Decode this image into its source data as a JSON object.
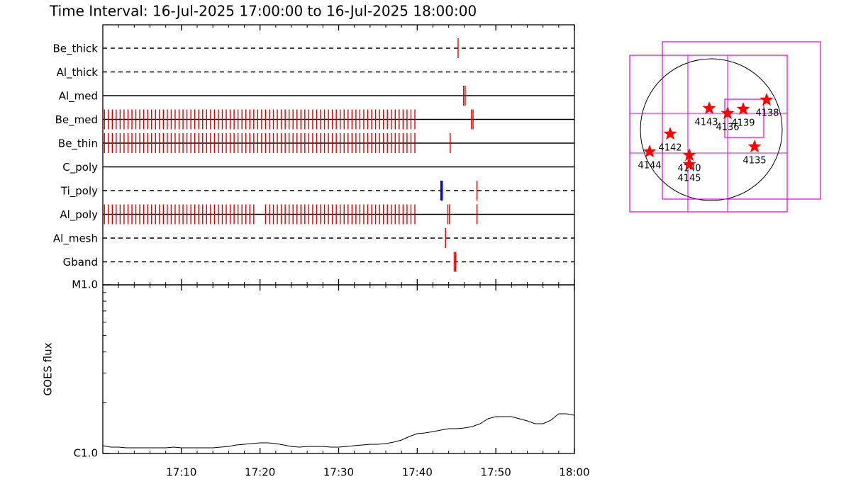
{
  "chart_data": [
    {
      "type": "timeline",
      "title": "Time Interval: 16-Jul-2025 17:00:00 to 16-Jul-2025 18:00:00",
      "xlim": [
        1020,
        1080
      ],
      "xticks": [
        {
          "value": 1030,
          "label": "17:10"
        },
        {
          "value": 1040,
          "label": "17:20"
        },
        {
          "value": 1050,
          "label": "17:30"
        },
        {
          "value": 1060,
          "label": "17:40"
        },
        {
          "value": 1070,
          "label": "17:50"
        },
        {
          "value": 1080,
          "label": "18:00"
        }
      ],
      "xminor": [
        1020,
        1022,
        1024,
        1026,
        1028,
        1032,
        1034,
        1036,
        1038,
        1042,
        1044,
        1046,
        1048,
        1052,
        1054,
        1056,
        1058,
        1062,
        1064,
        1066,
        1068,
        1072,
        1074,
        1076,
        1078
      ],
      "color": "#dd0000",
      "alt_color": "#0000ee",
      "rows": [
        {
          "name": "Be_thick",
          "dashed": true,
          "times": [
            1065.2
          ]
        },
        {
          "name": "Al_thick",
          "dashed": true,
          "times": []
        },
        {
          "name": "Al_med",
          "dashed": false,
          "times": [
            1065.9,
            1066.1
          ]
        },
        {
          "name": "Be_med",
          "dashed": false,
          "times": [
            1020.2,
            1020.7,
            1021.2,
            1021.7,
            1022.2,
            1022.7,
            1023.2,
            1023.7,
            1024.2,
            1024.7,
            1025.2,
            1025.7,
            1026.2,
            1026.7,
            1027.2,
            1027.7,
            1028.2,
            1028.7,
            1029.2,
            1029.7,
            1030.2,
            1030.7,
            1031.2,
            1031.7,
            1032.2,
            1032.7,
            1033.2,
            1033.7,
            1034.2,
            1034.7,
            1035.2,
            1035.7,
            1036.2,
            1036.7,
            1037.2,
            1037.7,
            1038.2,
            1038.7,
            1039.2,
            1039.7,
            1040.2,
            1040.7,
            1041.2,
            1041.7,
            1042.2,
            1042.7,
            1043.2,
            1043.7,
            1044.2,
            1044.7,
            1045.2,
            1045.7,
            1046.2,
            1046.7,
            1047.2,
            1047.7,
            1048.2,
            1048.7,
            1049.2,
            1049.7,
            1050.2,
            1050.7,
            1051.2,
            1051.7,
            1052.2,
            1052.7,
            1053.2,
            1053.7,
            1054.2,
            1054.7,
            1055.2,
            1055.7,
            1056.2,
            1056.7,
            1057.2,
            1057.7,
            1058.2,
            1058.7,
            1059.2,
            1059.7,
            1066.9,
            1067.1
          ]
        },
        {
          "name": "Be_thin",
          "dashed": false,
          "times": [
            1020.2,
            1020.7,
            1021.2,
            1021.7,
            1022.2,
            1022.7,
            1023.2,
            1023.7,
            1024.2,
            1024.7,
            1025.2,
            1025.7,
            1026.2,
            1026.7,
            1027.2,
            1027.7,
            1028.2,
            1028.7,
            1029.2,
            1029.7,
            1030.2,
            1030.7,
            1031.2,
            1031.7,
            1032.2,
            1032.7,
            1033.2,
            1033.7,
            1034.2,
            1034.7,
            1035.2,
            1035.7,
            1036.2,
            1036.7,
            1037.2,
            1037.7,
            1038.2,
            1038.7,
            1039.2,
            1039.7,
            1040.2,
            1040.7,
            1041.2,
            1041.7,
            1042.2,
            1042.7,
            1043.2,
            1043.7,
            1044.2,
            1044.7,
            1045.2,
            1045.7,
            1046.2,
            1046.7,
            1047.2,
            1047.7,
            1048.2,
            1048.7,
            1049.2,
            1049.7,
            1050.2,
            1050.7,
            1051.2,
            1051.7,
            1052.2,
            1052.7,
            1053.2,
            1053.7,
            1054.2,
            1054.7,
            1055.2,
            1055.7,
            1056.2,
            1056.7,
            1057.2,
            1057.7,
            1058.2,
            1058.7,
            1059.2,
            1059.7,
            1064.2
          ]
        },
        {
          "name": "C_poly",
          "dashed": false,
          "times": []
        },
        {
          "name": "Ti_poly",
          "dashed": true,
          "times": [
            1067.6
          ],
          "alt_times": [
            1063.1
          ]
        },
        {
          "name": "Al_poly",
          "dashed": false,
          "times": [
            1020.2,
            1020.7,
            1021.2,
            1021.7,
            1022.2,
            1022.7,
            1023.2,
            1023.7,
            1024.2,
            1024.7,
            1025.2,
            1025.7,
            1026.2,
            1026.7,
            1027.2,
            1027.7,
            1028.2,
            1028.7,
            1029.2,
            1029.7,
            1030.2,
            1030.7,
            1031.2,
            1031.7,
            1032.2,
            1032.7,
            1033.2,
            1033.7,
            1034.2,
            1034.7,
            1035.2,
            1035.7,
            1036.2,
            1036.7,
            1037.2,
            1037.7,
            1038.2,
            1038.7,
            1039.2,
            1040.7,
            1041.2,
            1041.7,
            1042.2,
            1042.7,
            1043.2,
            1043.7,
            1044.2,
            1044.7,
            1045.2,
            1045.7,
            1046.2,
            1046.7,
            1047.2,
            1047.7,
            1048.2,
            1048.7,
            1049.2,
            1049.7,
            1050.2,
            1050.7,
            1051.2,
            1051.7,
            1052.2,
            1052.7,
            1053.2,
            1053.7,
            1054.2,
            1054.7,
            1055.2,
            1055.7,
            1056.2,
            1056.7,
            1057.2,
            1057.7,
            1058.2,
            1058.7,
            1059.2,
            1059.7,
            1063.9,
            1064.1,
            1067.6
          ]
        },
        {
          "name": "Al_mesh",
          "dashed": true,
          "times": [
            1063.6
          ]
        },
        {
          "name": "Gband",
          "dashed": true,
          "times": [
            1064.7,
            1064.9
          ]
        }
      ]
    },
    {
      "type": "line",
      "ylabel": "GOES flux",
      "log": true,
      "ylim": [
        1e-06,
        1e-05
      ],
      "yticks": [
        {
          "value": 1e-06,
          "label": "C1.0"
        },
        {
          "value": 1e-05,
          "label": "M1.0"
        }
      ],
      "yminor": [
        2e-06,
        3e-06,
        4e-06,
        5e-06,
        6e-06,
        7e-06,
        8e-06,
        9e-06
      ],
      "xlim": [
        1020,
        1080
      ],
      "color": "#000000",
      "x": [
        1020,
        1021,
        1022,
        1023,
        1024,
        1025,
        1026,
        1027,
        1028,
        1029,
        1030,
        1031,
        1032,
        1033,
        1034,
        1035,
        1036,
        1037,
        1038,
        1039,
        1040,
        1041,
        1042,
        1043,
        1044,
        1045,
        1046,
        1047,
        1048,
        1049,
        1050,
        1051,
        1052,
        1053,
        1054,
        1055,
        1056,
        1057,
        1058,
        1059,
        1060,
        1061,
        1062,
        1063,
        1064,
        1065,
        1066,
        1067,
        1068,
        1069,
        1070,
        1071,
        1072,
        1073,
        1074,
        1075,
        1076,
        1077,
        1078,
        1079,
        1080
      ],
      "values": [
        1.112e-06,
        1.091e-06,
        1.091e-06,
        1.08e-06,
        1.08e-06,
        1.08e-06,
        1.08e-06,
        1.08e-06,
        1.08e-06,
        1.091e-06,
        1.08e-06,
        1.08e-06,
        1.08e-06,
        1.08e-06,
        1.08e-06,
        1.091e-06,
        1.101e-06,
        1.123e-06,
        1.134e-06,
        1.145e-06,
        1.156e-06,
        1.156e-06,
        1.145e-06,
        1.123e-06,
        1.101e-06,
        1.091e-06,
        1.101e-06,
        1.101e-06,
        1.101e-06,
        1.091e-06,
        1.091e-06,
        1.101e-06,
        1.112e-06,
        1.123e-06,
        1.134e-06,
        1.134e-06,
        1.145e-06,
        1.167e-06,
        1.202e-06,
        1.261e-06,
        1.311e-06,
        1.324e-06,
        1.349e-06,
        1.376e-06,
        1.403e-06,
        1.403e-06,
        1.417e-06,
        1.444e-06,
        1.501e-06,
        1.607e-06,
        1.654e-06,
        1.654e-06,
        1.654e-06,
        1.607e-06,
        1.561e-06,
        1.501e-06,
        1.501e-06,
        1.576e-06,
        1.719e-06,
        1.719e-06,
        1.686e-06
      ]
    }
  ],
  "sun_map": {
    "star_color": "#ff0000",
    "box_color": "#e000e0",
    "regions": [
      {
        "label": "4143"
      },
      {
        "label": "4136"
      },
      {
        "label": "4139"
      },
      {
        "label": "4138"
      },
      {
        "label": "4142"
      },
      {
        "label": "4144"
      },
      {
        "label": "4140"
      },
      {
        "label": "4145"
      },
      {
        "label": "4135"
      }
    ]
  }
}
